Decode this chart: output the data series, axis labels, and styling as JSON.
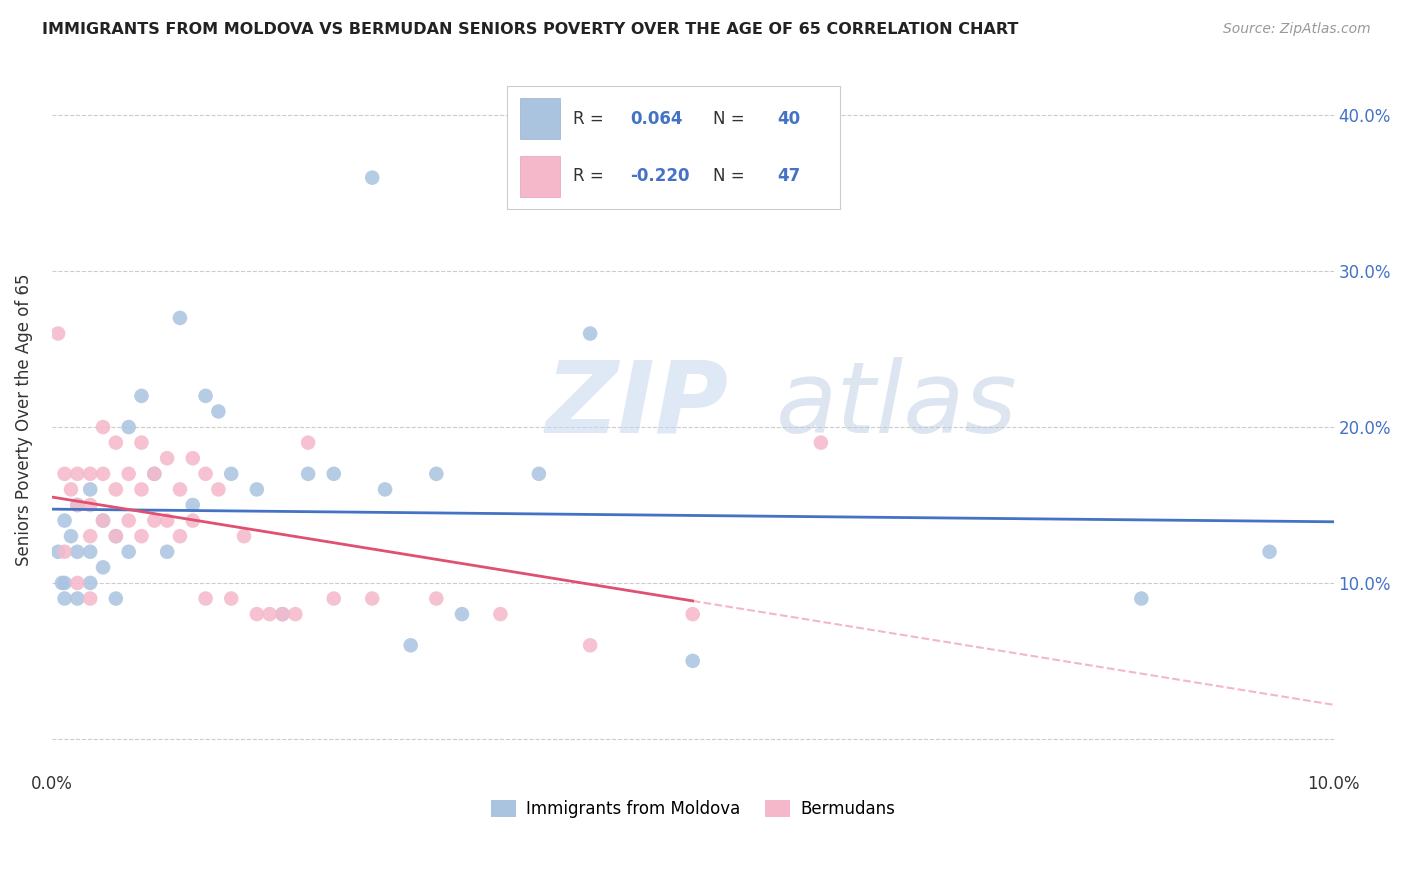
{
  "title": "IMMIGRANTS FROM MOLDOVA VS BERMUDAN SENIORS POVERTY OVER THE AGE OF 65 CORRELATION CHART",
  "source": "Source: ZipAtlas.com",
  "ylabel": "Seniors Poverty Over the Age of 65",
  "r_moldova": 0.064,
  "n_moldova": 40,
  "r_bermuda": -0.22,
  "n_bermuda": 47,
  "xlim": [
    0.0,
    0.1
  ],
  "ylim": [
    -0.02,
    0.43
  ],
  "yticks": [
    0.0,
    0.1,
    0.2,
    0.3,
    0.4
  ],
  "ytick_labels": [
    "",
    "10.0%",
    "20.0%",
    "30.0%",
    "40.0%"
  ],
  "xticks": [
    0.0,
    0.02,
    0.04,
    0.06,
    0.08,
    0.1
  ],
  "xtick_labels": [
    "0.0%",
    "",
    "",
    "",
    "",
    "10.0%"
  ],
  "color_moldova": "#aac4e0",
  "color_bermuda": "#f5b8cb",
  "line_color_moldova": "#4472c4",
  "line_color_bermuda": "#e05070",
  "background_color": "#ffffff",
  "moldova_x": [
    0.0005,
    0.0008,
    0.001,
    0.001,
    0.001,
    0.0015,
    0.002,
    0.002,
    0.002,
    0.003,
    0.003,
    0.003,
    0.004,
    0.004,
    0.005,
    0.005,
    0.006,
    0.006,
    0.007,
    0.008,
    0.009,
    0.01,
    0.011,
    0.012,
    0.013,
    0.014,
    0.016,
    0.018,
    0.02,
    0.022,
    0.025,
    0.026,
    0.028,
    0.03,
    0.032,
    0.038,
    0.042,
    0.05,
    0.085,
    0.095
  ],
  "moldova_y": [
    0.12,
    0.1,
    0.14,
    0.1,
    0.09,
    0.13,
    0.15,
    0.12,
    0.09,
    0.16,
    0.12,
    0.1,
    0.11,
    0.14,
    0.13,
    0.09,
    0.2,
    0.12,
    0.22,
    0.17,
    0.12,
    0.27,
    0.15,
    0.22,
    0.21,
    0.17,
    0.16,
    0.08,
    0.17,
    0.17,
    0.36,
    0.16,
    0.06,
    0.17,
    0.08,
    0.17,
    0.26,
    0.05,
    0.09,
    0.12
  ],
  "bermuda_x": [
    0.0005,
    0.001,
    0.001,
    0.0015,
    0.002,
    0.002,
    0.002,
    0.003,
    0.003,
    0.003,
    0.003,
    0.004,
    0.004,
    0.004,
    0.005,
    0.005,
    0.005,
    0.006,
    0.006,
    0.007,
    0.007,
    0.007,
    0.008,
    0.008,
    0.009,
    0.009,
    0.01,
    0.01,
    0.011,
    0.011,
    0.012,
    0.012,
    0.013,
    0.014,
    0.015,
    0.016,
    0.017,
    0.018,
    0.019,
    0.02,
    0.022,
    0.025,
    0.03,
    0.035,
    0.042,
    0.05,
    0.06
  ],
  "bermuda_y": [
    0.26,
    0.17,
    0.12,
    0.16,
    0.17,
    0.15,
    0.1,
    0.17,
    0.15,
    0.13,
    0.09,
    0.2,
    0.17,
    0.14,
    0.19,
    0.16,
    0.13,
    0.17,
    0.14,
    0.19,
    0.16,
    0.13,
    0.17,
    0.14,
    0.18,
    0.14,
    0.16,
    0.13,
    0.18,
    0.14,
    0.17,
    0.09,
    0.16,
    0.09,
    0.13,
    0.08,
    0.08,
    0.08,
    0.08,
    0.19,
    0.09,
    0.09,
    0.09,
    0.08,
    0.06,
    0.08,
    0.19
  ],
  "legend_box_color": "#f0f0f0",
  "legend_border_color": "#cccccc",
  "watermark_zip_color": "#ccdaee",
  "watermark_atlas_color": "#b8ccdf"
}
